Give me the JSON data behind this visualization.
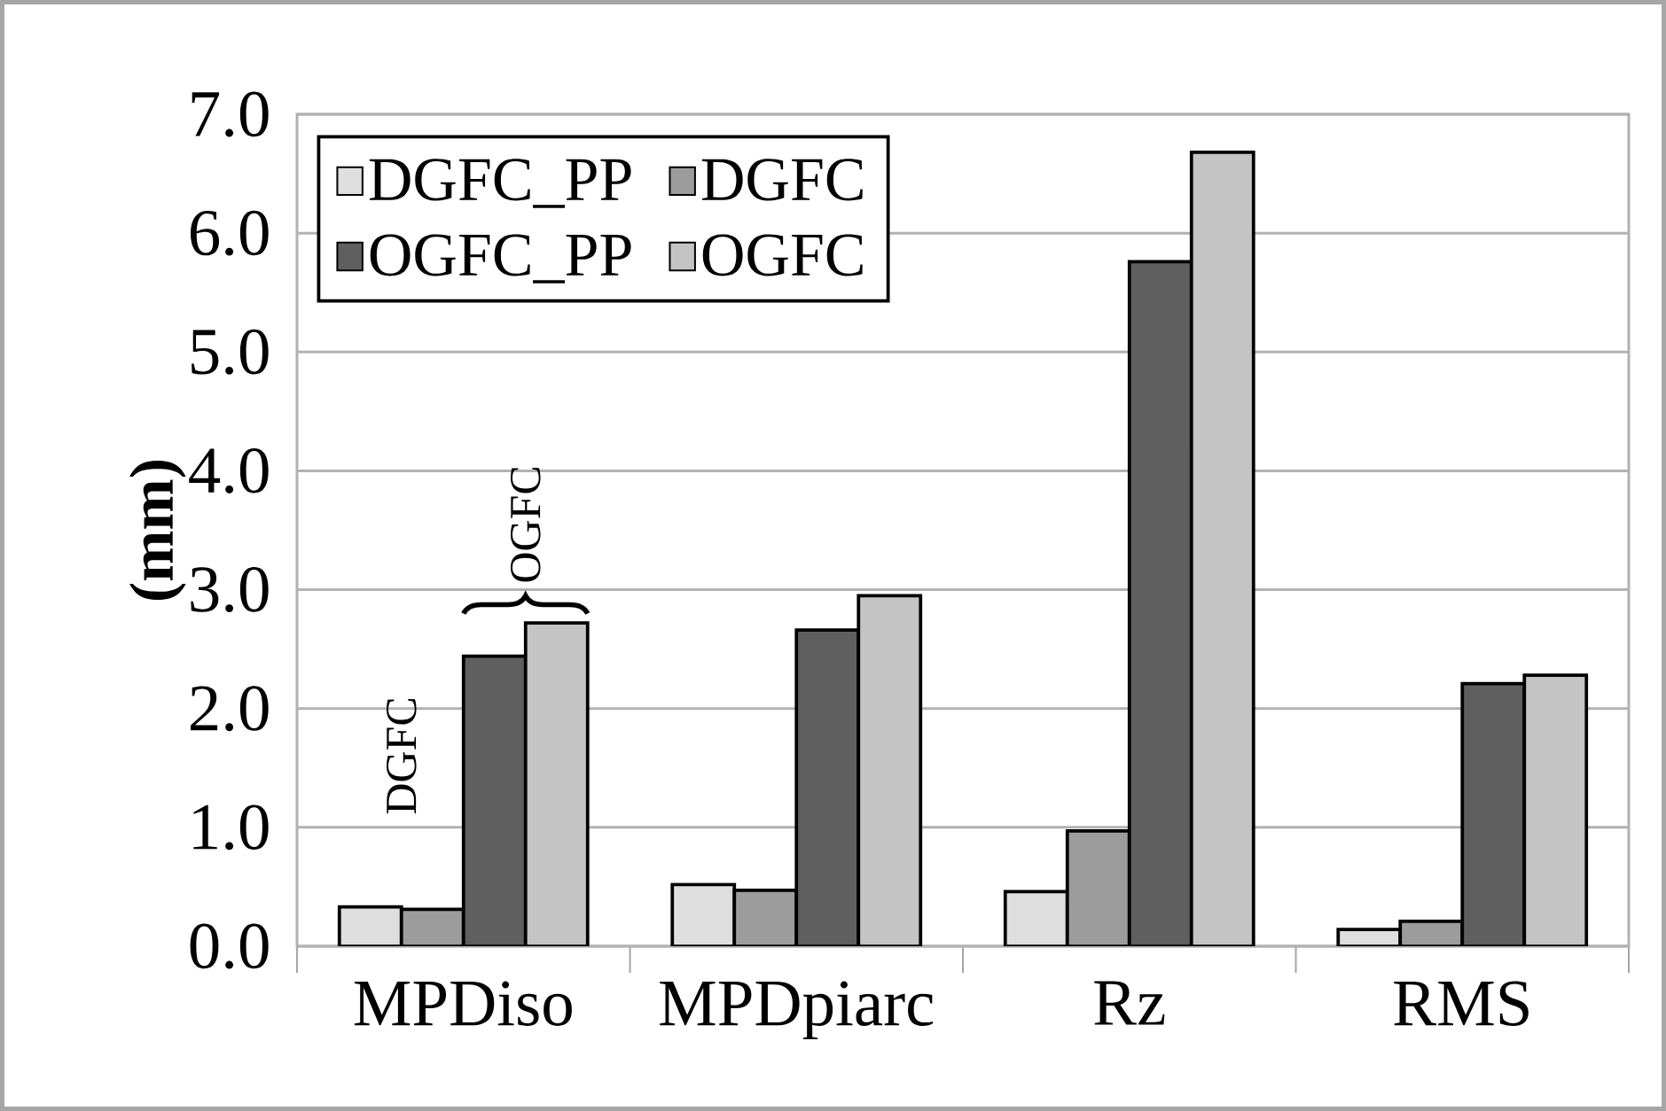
{
  "chart_data": {
    "type": "bar",
    "ylabel": "(mm)",
    "categories": [
      "MPDiso",
      "MPDpiarc",
      "Rz",
      "RMS"
    ],
    "series": [
      {
        "name": "DGFC_PP",
        "color": "#dedede",
        "values": [
          0.33,
          0.52,
          0.46,
          0.14
        ]
      },
      {
        "name": "DGFC",
        "color": "#9c9c9c",
        "values": [
          0.31,
          0.47,
          0.97,
          0.21
        ]
      },
      {
        "name": "OGFC_PP",
        "color": "#5f5f5f",
        "values": [
          2.44,
          2.66,
          5.76,
          2.21
        ]
      },
      {
        "name": "OGFC",
        "color": "#c4c4c4",
        "values": [
          2.72,
          2.95,
          6.68,
          2.28
        ]
      }
    ],
    "ylim": [
      0,
      7
    ],
    "yticks": [
      {
        "value": 0,
        "label": "0.0"
      },
      {
        "value": 1,
        "label": "1.0"
      },
      {
        "value": 2,
        "label": "2.0"
      },
      {
        "value": 3,
        "label": "3.0"
      },
      {
        "value": 4,
        "label": "4.0"
      },
      {
        "value": 5,
        "label": "5.0"
      },
      {
        "value": 6,
        "label": "6.0"
      },
      {
        "value": 7,
        "label": "7.0"
      }
    ],
    "grid": "y",
    "legend": "top left",
    "annotations": [
      "DGFC",
      "OGFC"
    ]
  }
}
